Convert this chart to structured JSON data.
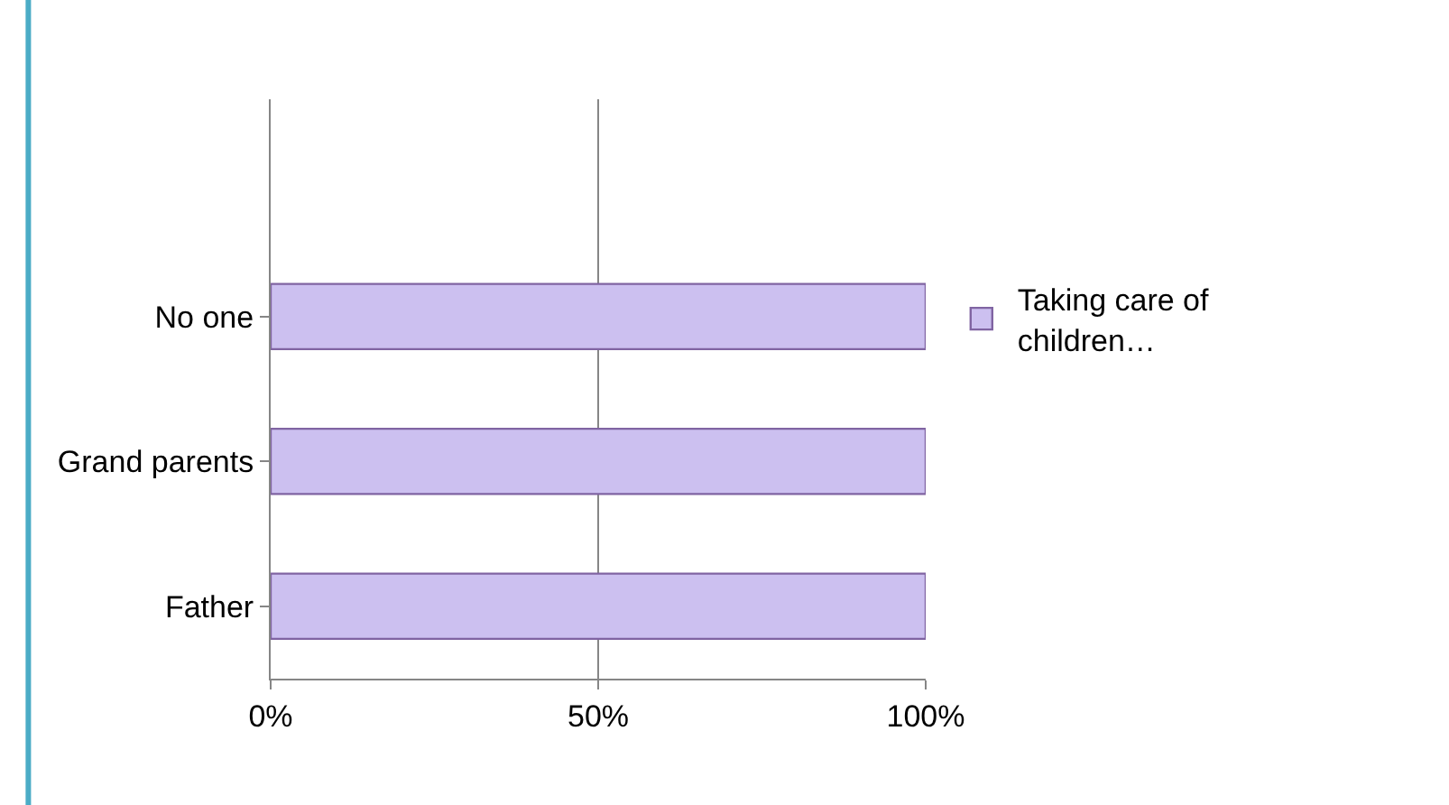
{
  "chart_data": {
    "type": "bar",
    "orientation": "horizontal",
    "categories": [
      null,
      "No one",
      "Grand parents",
      "Father"
    ],
    "series": [
      {
        "name": "Taking care of children…",
        "color": "#ccc0f0",
        "values": [
          null,
          100,
          100,
          100
        ]
      }
    ],
    "xlim": [
      0,
      100
    ],
    "xticks": [
      {
        "value": 0,
        "label": "0%"
      },
      {
        "value": 50,
        "label": "50%"
      },
      {
        "value": 100,
        "label": "100%"
      }
    ],
    "grid": "x",
    "legend": "right"
  }
}
